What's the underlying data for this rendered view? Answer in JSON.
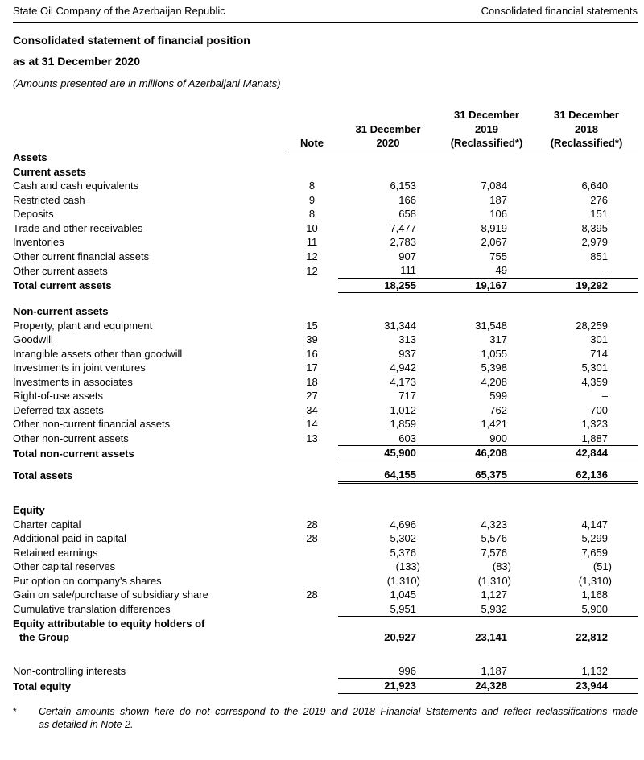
{
  "page_header": {
    "company": "State Oil Company of the Azerbaijan Republic",
    "right_label": "Consolidated financial statements"
  },
  "title": {
    "line1": "Consolidated statement of financial position",
    "line2": "as at 31 December 2020",
    "amounts_note": "(Amounts presented are in millions of Azerbaijani Manats)"
  },
  "table": {
    "header": {
      "note": "Note",
      "col2020": [
        "31 December",
        "2020"
      ],
      "col2019": [
        "31 December",
        "2019",
        "(Reclassified*)"
      ],
      "col2018": [
        "31 December",
        "2018",
        "(Reclassified*)"
      ]
    },
    "rows": [
      {
        "type": "section",
        "label": "Assets"
      },
      {
        "type": "section",
        "label": "Current assets"
      },
      {
        "type": "data",
        "label": "Cash and cash equivalents",
        "note": "8",
        "values": [
          "6,153",
          "7,084",
          "6,640"
        ]
      },
      {
        "type": "data",
        "label": "Restricted cash",
        "note": "9",
        "values": [
          "166",
          "187",
          "276"
        ]
      },
      {
        "type": "data",
        "label": "Deposits",
        "note": "8",
        "values": [
          "658",
          "106",
          "151"
        ]
      },
      {
        "type": "data",
        "label": "Trade and other receivables",
        "note": "10",
        "values": [
          "7,477",
          "8,919",
          "8,395"
        ]
      },
      {
        "type": "data",
        "label": "Inventories",
        "note": "11",
        "values": [
          "2,783",
          "2,067",
          "2,979"
        ]
      },
      {
        "type": "data",
        "label": "Other current financial assets",
        "note": "12",
        "values": [
          "907",
          "755",
          "851"
        ]
      },
      {
        "type": "data",
        "label": "Other current assets",
        "note": "12",
        "values": [
          "111",
          "49",
          "–"
        ]
      },
      {
        "type": "total",
        "label": "Total current assets",
        "note": "",
        "values": [
          "18,255",
          "19,167",
          "19,292"
        ],
        "rules": [
          "rule-top",
          "rule-bottom"
        ]
      },
      {
        "type": "spacer",
        "height": 14
      },
      {
        "type": "section",
        "label": "Non-current assets"
      },
      {
        "type": "data",
        "label": "Property, plant and equipment",
        "note": "15",
        "values": [
          "31,344",
          "31,548",
          "28,259"
        ]
      },
      {
        "type": "data",
        "label": "Goodwill",
        "note": "39",
        "values": [
          "313",
          "317",
          "301"
        ]
      },
      {
        "type": "data",
        "label": "Intangible assets other than goodwill",
        "note": "16",
        "values": [
          "937",
          "1,055",
          "714"
        ]
      },
      {
        "type": "data",
        "label": "Investments in joint ventures",
        "note": "17",
        "values": [
          "4,942",
          "5,398",
          "5,301"
        ]
      },
      {
        "type": "data",
        "label": "Investments in associates",
        "note": "18",
        "values": [
          "4,173",
          "4,208",
          "4,359"
        ]
      },
      {
        "type": "data",
        "label": "Right-of-use assets",
        "note": "27",
        "values": [
          "717",
          "599",
          "–"
        ]
      },
      {
        "type": "data",
        "label": "Deferred tax assets",
        "note": "34",
        "values": [
          "1,012",
          "762",
          "700"
        ]
      },
      {
        "type": "data",
        "label": "Other non-current financial assets",
        "note": "14",
        "values": [
          "1,859",
          "1,421",
          "1,323"
        ]
      },
      {
        "type": "data",
        "label": "Other non-current assets",
        "note": "13",
        "values": [
          "603",
          "900",
          "1,887"
        ]
      },
      {
        "type": "total",
        "label": "Total non-current assets",
        "note": "",
        "values": [
          "45,900",
          "46,208",
          "42,844"
        ],
        "rules": [
          "rule-top",
          "rule-bottom"
        ]
      },
      {
        "type": "spacer",
        "height": 8
      },
      {
        "type": "total",
        "label": "Total assets",
        "note": "",
        "values": [
          "64,155",
          "65,375",
          "62,136"
        ],
        "rules": [
          "rule-double"
        ]
      },
      {
        "type": "spacer",
        "height": 24
      },
      {
        "type": "section",
        "label": "Equity"
      },
      {
        "type": "data",
        "label": "Charter capital",
        "note": "28",
        "values": [
          "4,696",
          "4,323",
          "4,147"
        ]
      },
      {
        "type": "data",
        "label": "Additional paid-in capital",
        "note": "28",
        "values": [
          "5,302",
          "5,576",
          "5,299"
        ]
      },
      {
        "type": "data",
        "label": "Retained earnings",
        "note": "",
        "values": [
          "5,376",
          "7,576",
          "7,659"
        ]
      },
      {
        "type": "data",
        "label": "Other capital reserves",
        "note": "",
        "values": [
          "(133)",
          "(83)",
          "(51)"
        ]
      },
      {
        "type": "data",
        "label": "Put option on company's shares",
        "note": "",
        "values": [
          "(1,310)",
          "(1,310)",
          "(1,310)"
        ]
      },
      {
        "type": "data",
        "label": "Gain on sale/purchase of subsidiary share",
        "note": "28",
        "values": [
          "1,045",
          "1,127",
          "1,168"
        ]
      },
      {
        "type": "data",
        "label": "Cumulative translation differences",
        "note": "",
        "values": [
          "5,951",
          "5,932",
          "5,900"
        ]
      },
      {
        "type": "total2",
        "label": "Equity attributable to equity holders of",
        "label2": "the Group",
        "note": "",
        "values": [
          "20,927",
          "23,141",
          "22,812"
        ],
        "rules": [
          "rule-top"
        ]
      },
      {
        "type": "spacer",
        "height": 24
      },
      {
        "type": "data",
        "label": "Non-controlling interests",
        "note": "",
        "values": [
          "996",
          "1,187",
          "1,132"
        ]
      },
      {
        "type": "total",
        "label": "Total equity",
        "note": "",
        "values": [
          "21,923",
          "24,328",
          "23,944"
        ],
        "rules": [
          "rule-top",
          "rule-bottom"
        ]
      }
    ]
  },
  "footnote": {
    "marker": "*",
    "line1": "Certain amounts shown here do not correspond to the 2019 and 2018 Financial Statements and reflect reclassifications made",
    "line2": "as detailed in Note 2."
  }
}
